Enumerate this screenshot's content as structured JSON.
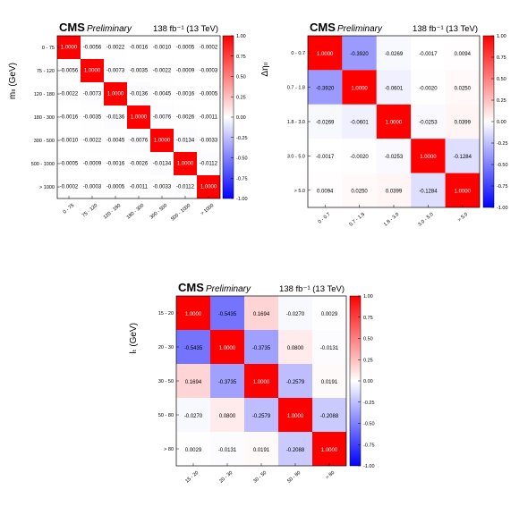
{
  "chart_data": [
    {
      "type": "heatmap",
      "cms_label": "CMS",
      "prelim_label": "Preliminary",
      "lumi_label": "138 fb⁻¹ (13 TeV)",
      "ylabel": "mₗₗ (GeV)",
      "xlabel": "",
      "x_categories": [
        "0 - 75",
        "75 - 120",
        "120 - 180",
        "180 - 300",
        "300 - 500",
        "500 - 1000",
        "> 1000"
      ],
      "y_categories": [
        "0 - 75",
        "75 - 120",
        "120 - 180",
        "180 - 300",
        "300 - 500",
        "500 - 1000",
        "> 1000"
      ],
      "matrix": [
        [
          "1.0000",
          "-0.0056",
          "-0.0022",
          "-0.0016",
          "-0.0010",
          "-0.0005",
          "-0.0002"
        ],
        [
          "-0.0056",
          "1.0000",
          "-0.0073",
          "-0.0035",
          "-0.0022",
          "-0.0009",
          "-0.0003"
        ],
        [
          "-0.0022",
          "-0.0073",
          "1.0000",
          "-0.0136",
          "-0.0045",
          "-0.0016",
          "-0.0005"
        ],
        [
          "-0.0016",
          "-0.0035",
          "-0.0136",
          "1.0000",
          "-0.0076",
          "-0.0026",
          "-0.0011"
        ],
        [
          "-0.0010",
          "-0.0022",
          "-0.0045",
          "-0.0076",
          "1.0000",
          "-0.0134",
          "-0.0033"
        ],
        [
          "-0.0005",
          "-0.0009",
          "-0.0016",
          "-0.0026",
          "-0.0134",
          "1.0000",
          "-0.0112"
        ],
        [
          "-0.0002",
          "-0.0003",
          "-0.0005",
          "-0.0011",
          "-0.0033",
          "-0.0112",
          "1.0000"
        ]
      ],
      "zlim": [
        -1,
        1
      ],
      "colorbar_ticks": [
        "1.00",
        "0.75",
        "0.50",
        "0.25",
        "0.00",
        "-0.25",
        "-0.50",
        "-0.75",
        "-1.00"
      ]
    },
    {
      "type": "heatmap",
      "cms_label": "CMS",
      "prelim_label": "Preliminary",
      "lumi_label": "138 fb⁻¹ (13 TeV)",
      "ylabel": "Δηₗₗ",
      "xlabel": "",
      "x_categories": [
        "0 - 0.7",
        "0.7 - 1.8",
        "1.8 - 3.0",
        "3.0 - 5.0",
        "> 5.0"
      ],
      "y_categories": [
        "0 - 0.7",
        "0.7 - 1.8",
        "1.8 - 3.0",
        "3.0 - 5.0",
        "> 5.0"
      ],
      "matrix": [
        [
          "1.0000",
          "-0.3920",
          "-0.0269",
          "-0.0017",
          "0.0094"
        ],
        [
          "-0.3920",
          "1.0000",
          "-0.0601",
          "-0.0020",
          "0.0250"
        ],
        [
          "-0.0269",
          "-0.0601",
          "1.0000",
          "-0.0253",
          "0.0399"
        ],
        [
          "-0.0017",
          "-0.0020",
          "-0.0253",
          "1.0000",
          "-0.1284"
        ],
        [
          "0.0094",
          "0.0250",
          "0.0399",
          "-0.1284",
          "1.0000"
        ]
      ],
      "zlim": [
        -1,
        1
      ],
      "colorbar_ticks": [
        "1.00",
        "0.75",
        "0.50",
        "0.25",
        "0.00",
        "-0.25",
        "-0.50",
        "-0.75",
        "-1.00"
      ]
    },
    {
      "type": "heatmap",
      "cms_label": "CMS",
      "prelim_label": "Preliminary",
      "lumi_label": "138 fb⁻¹ (13 TeV)",
      "ylabel": "lₜ (GeV)",
      "xlabel": "",
      "x_categories": [
        "15 - 20",
        "20 - 30",
        "30 - 50",
        "50 - 80",
        "> 80"
      ],
      "y_categories": [
        "15 - 20",
        "20 - 30",
        "30 - 50",
        "50 - 80",
        "> 80"
      ],
      "matrix": [
        [
          "1.0000",
          "-0.5435",
          "0.1694",
          "-0.0270",
          "0.0029"
        ],
        [
          "-0.5435",
          "1.0000",
          "-0.3735",
          "0.0800",
          "-0.0131"
        ],
        [
          "0.1694",
          "-0.3735",
          "1.0000",
          "-0.2579",
          "0.0191"
        ],
        [
          "-0.0270",
          "0.0800",
          "-0.2579",
          "1.0000",
          "-0.2088"
        ],
        [
          "0.0029",
          "-0.0131",
          "0.0191",
          "-0.2088",
          "1.0000"
        ]
      ],
      "zlim": [
        -1,
        1
      ],
      "colorbar_ticks": [
        "1.00",
        "0.75",
        "0.50",
        "0.25",
        "0.00",
        "-0.25",
        "-0.50",
        "-0.75",
        "-1.00"
      ]
    }
  ]
}
